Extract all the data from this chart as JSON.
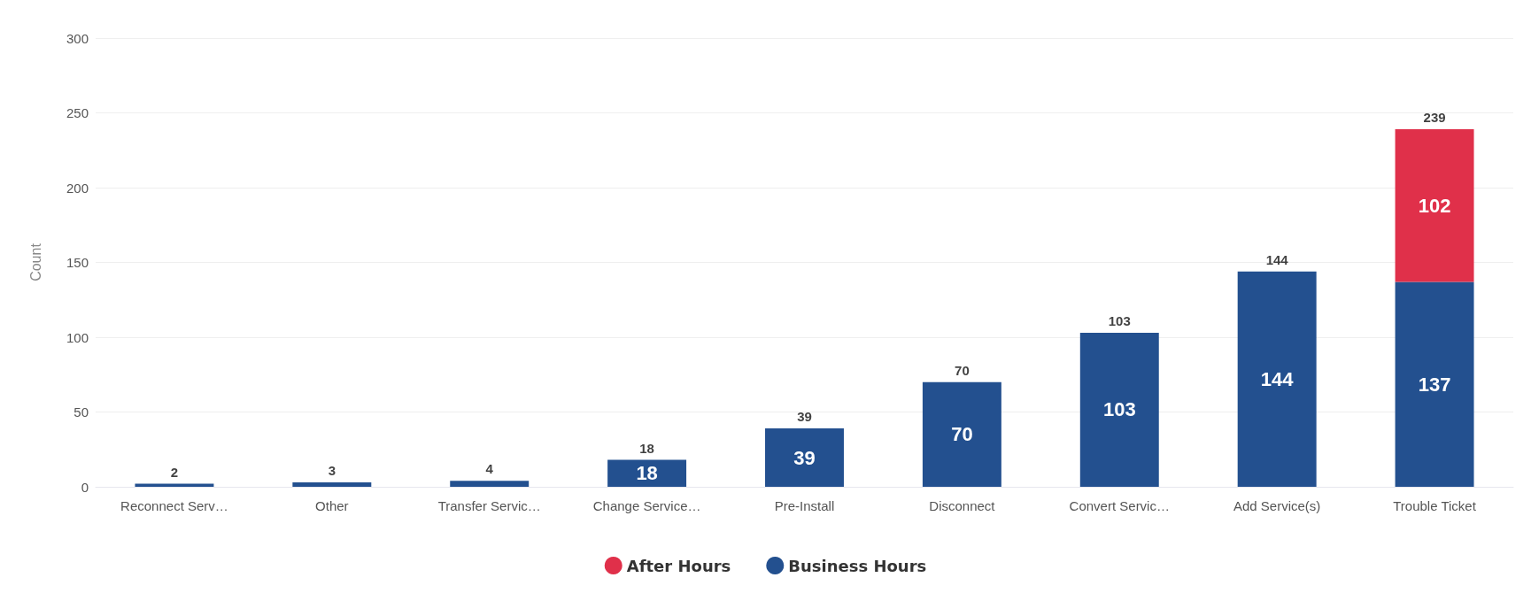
{
  "chart_data": {
    "type": "bar",
    "stacked": true,
    "ylabel": "Count",
    "categories": [
      "Reconnect Serv…",
      "Other",
      "Transfer Servic…",
      "Change Service…",
      "Pre-Install",
      "Disconnect",
      "Convert Servic…",
      "Add Service(s)",
      "Trouble Ticket"
    ],
    "series": [
      {
        "name": "Business Hours",
        "color": "#23508f",
        "values": [
          2,
          3,
          4,
          18,
          39,
          70,
          103,
          144,
          137
        ],
        "value_labels": [
          null,
          null,
          null,
          "18",
          "39",
          "70",
          "103",
          "144",
          "137"
        ]
      },
      {
        "name": "After Hours",
        "color": "#e0304a",
        "values": [
          null,
          null,
          null,
          null,
          null,
          null,
          null,
          null,
          102
        ],
        "value_labels": [
          null,
          null,
          null,
          null,
          null,
          null,
          null,
          null,
          "102"
        ]
      }
    ],
    "totals": [
      "2",
      "3",
      "4",
      "18",
      "39",
      "70",
      "103",
      "144",
      "239"
    ],
    "ylim": [
      0,
      300
    ],
    "yticks": [
      0,
      50,
      100,
      150,
      200,
      250,
      300
    ],
    "grid": "y",
    "legend": "bottom"
  }
}
